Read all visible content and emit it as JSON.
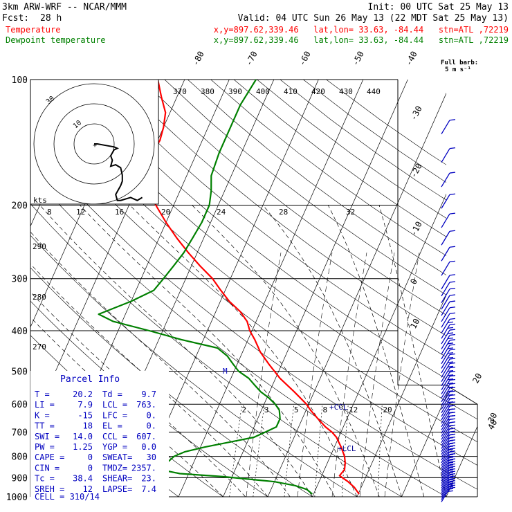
{
  "header": {
    "model": "3km ARW-WRF -- NCAR/MMM",
    "init": "Init: 00 UTC Sat 25 May 13",
    "fcst_label": "Fcst:",
    "fcst_value": "28 h",
    "valid": "Valid: 04 UTC Sun 26 May 13 (22 MDT Sat 25 May 13)"
  },
  "legend": [
    {
      "name": "Temperature",
      "color": "#ff0000",
      "info": "x,y=897.62,339.46   lat,lon= 33.63, -84.44   stn=ATL ,72219"
    },
    {
      "name": "Dewpoint temperature",
      "color": "#008000",
      "info": "x,y=897.62,339.46   lat,lon= 33.63, -84.44   stn=ATL ,72219"
    }
  ],
  "barb_legend": {
    "line1": "Full barb:",
    "line2": "5 m s⁻¹"
  },
  "parcel_info": {
    "title": "Parcel Info",
    "rows": [
      [
        "T  =",
        "20.2",
        "Td =",
        "9.7"
      ],
      [
        "LI =",
        "7.9",
        "LCL =",
        "763."
      ],
      [
        "K  =",
        "-15",
        "LFC =",
        "0."
      ],
      [
        "TT =",
        "18",
        "EL  =",
        "0."
      ],
      [
        "SWI =",
        "14.0",
        "CCL =",
        "607."
      ],
      [
        "PW =",
        "1.25",
        "YGP =",
        "0.0"
      ],
      [
        "CAPE =",
        "0",
        "SWEAT=",
        "30"
      ],
      [
        "CIN =",
        "0",
        "TMDZ=",
        "2357."
      ],
      [
        "Tc =",
        "38.4",
        "SHEAR=",
        "23."
      ],
      [
        "SREH =",
        "12",
        "LAPSE=",
        "7.4"
      ]
    ],
    "cell": "CELL = 310/14"
  },
  "hodograph": {
    "units": "kts",
    "ring_labels": [
      "30",
      "20",
      "10"
    ],
    "speed_labels": [
      "8",
      "12",
      "16",
      "20",
      "24",
      "28",
      "32"
    ]
  },
  "annotations": {
    "ccl": "CCL",
    "lcl": "LCL",
    "m": "M"
  },
  "chart_data": {
    "type": "line",
    "title": "",
    "ylabel": "",
    "xlabel": "",
    "y_scale": "log",
    "ylim": [
      1000,
      100
    ],
    "xlim": [
      -40,
      40
    ],
    "grid": true,
    "pressure_ticks": [
      100,
      200,
      300,
      400,
      500,
      600,
      700,
      800,
      900,
      1000
    ],
    "temp_labels_top": [
      -80,
      -70,
      -60,
      -50,
      -40
    ],
    "temp_labels_right": [
      -30,
      -20,
      -10,
      0,
      10,
      20,
      30,
      40
    ],
    "theta_e_labels": [
      370,
      380,
      390,
      400,
      410,
      420,
      430,
      440
    ],
    "theta_labels": [
      290,
      280,
      270
    ],
    "mixing_ratio_labels": [
      2,
      3,
      5,
      8,
      12,
      20
    ],
    "series": [
      {
        "name": "Temperature",
        "color": "#ff0000",
        "pressure": [
          985,
          950,
          920,
          890,
          860,
          830,
          800,
          760,
          720,
          700,
          680,
          650,
          620,
          600,
          560,
          520,
          480,
          450,
          420,
          400,
          380,
          360,
          340,
          320,
          300,
          280,
          260,
          240,
          220,
          200,
          190,
          170,
          150,
          140,
          130,
          120,
          110,
          100
        ],
        "temp": [
          20.2,
          18.5,
          16.5,
          14.0,
          14.5,
          14.0,
          13.2,
          11.5,
          9.5,
          8.0,
          6.0,
          3.5,
          1.0,
          -0.5,
          -4.5,
          -9.0,
          -13.0,
          -16.0,
          -18.5,
          -20.5,
          -22.0,
          -24.5,
          -28.0,
          -31.0,
          -34.0,
          -38.0,
          -42.0,
          -46.0,
          -50.0,
          -54.0,
          -56.0,
          -58.5,
          -60.0,
          -59.5,
          -60.0,
          -61.0,
          -63.5,
          -66.0
        ]
      },
      {
        "name": "Dewpoint temperature",
        "color": "#008000",
        "pressure": [
          985,
          960,
          940,
          920,
          895,
          880,
          860,
          830,
          800,
          780,
          760,
          740,
          720,
          700,
          680,
          650,
          620,
          600,
          580,
          560,
          540,
          520,
          500,
          480,
          460,
          440,
          420,
          400,
          380,
          365,
          340,
          320,
          300,
          280,
          260,
          240,
          220,
          200,
          185,
          170,
          150,
          130,
          115,
          100
        ],
        "temp": [
          9.7,
          8.0,
          5.0,
          0.0,
          -12.0,
          -22.0,
          -27.0,
          -26.0,
          -25.0,
          -23.0,
          -19.0,
          -14.0,
          -9.0,
          -7.0,
          -5.0,
          -5.0,
          -6.0,
          -7.5,
          -9.5,
          -12.0,
          -14.0,
          -16.0,
          -19.0,
          -21.0,
          -23.0,
          -26.0,
          -35.0,
          -43.0,
          -52.0,
          -56.0,
          -50.0,
          -46.0,
          -45.0,
          -44.0,
          -43.0,
          -42.5,
          -42.0,
          -42.0,
          -43.0,
          -44.5,
          -45.0,
          -45.0,
          -45.0,
          -44.0
        ]
      }
    ],
    "hodograph_wind_kts": {
      "u": [
        0,
        2,
        7,
        12,
        14,
        12,
        10,
        11,
        10,
        13,
        16,
        17,
        17,
        16,
        13,
        14,
        16,
        22,
        26,
        29
      ],
      "v": [
        0,
        0,
        1,
        2,
        3,
        4,
        8,
        11,
        15,
        14,
        16,
        21,
        25,
        28,
        34,
        38,
        38,
        36,
        38,
        36
      ]
    }
  }
}
